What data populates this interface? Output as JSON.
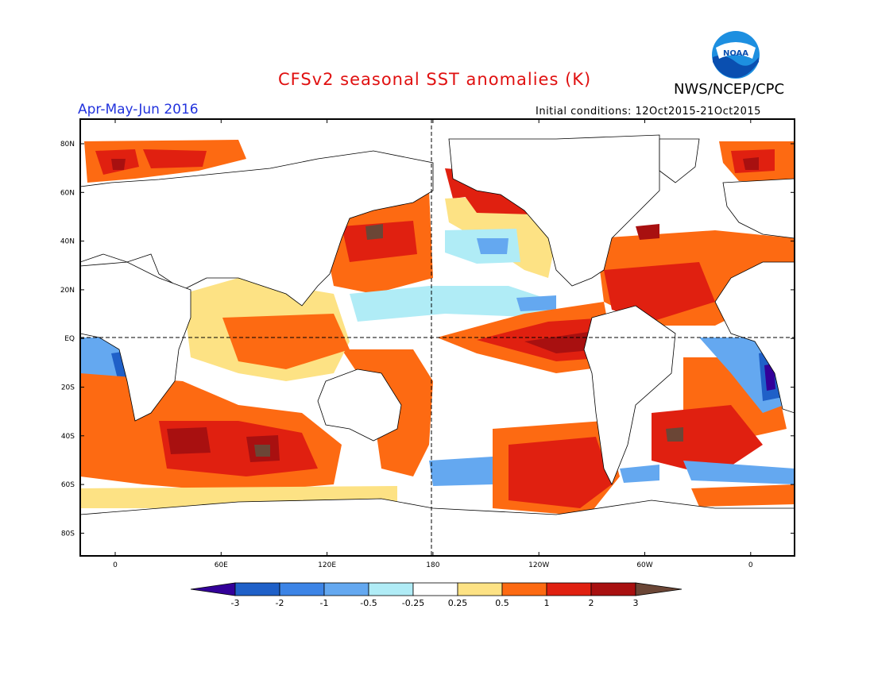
{
  "header": {
    "title": "CFSv2 seasonal SST anomalies (K)",
    "organization": "NWS/NCEP/CPC",
    "logo_text": "NOAA",
    "period": "Apr-May-Jun 2016",
    "initial_conditions": "Initial conditions: 12Oct2015-21Oct2015"
  },
  "map": {
    "projection": "cylindrical equidistant",
    "lon_range": [
      -20,
      382
    ],
    "lat_range": [
      -90,
      90
    ],
    "lat_ticks": [
      "80N",
      "60N",
      "40N",
      "20N",
      "EQ",
      "20S",
      "40S",
      "60S",
      "80S"
    ],
    "lon_ticks": [
      "0",
      "60E",
      "120E",
      "180",
      "120W",
      "60W",
      "0"
    ],
    "reference_lines": [
      "equator dashed",
      "180 meridian dashed"
    ]
  },
  "colorbar": {
    "labels": [
      "-3",
      "-2",
      "-1",
      "-0.5",
      "-0.25",
      "0.25",
      "0.5",
      "1",
      "2",
      "3"
    ],
    "colors": [
      "#330099",
      "#1f60c8",
      "#3c84e6",
      "#64a8f0",
      "#b0ecf6",
      "#ffffff",
      "#fde284",
      "#fd6a12",
      "#e02010",
      "#a81010",
      "#6b4636"
    ]
  }
}
